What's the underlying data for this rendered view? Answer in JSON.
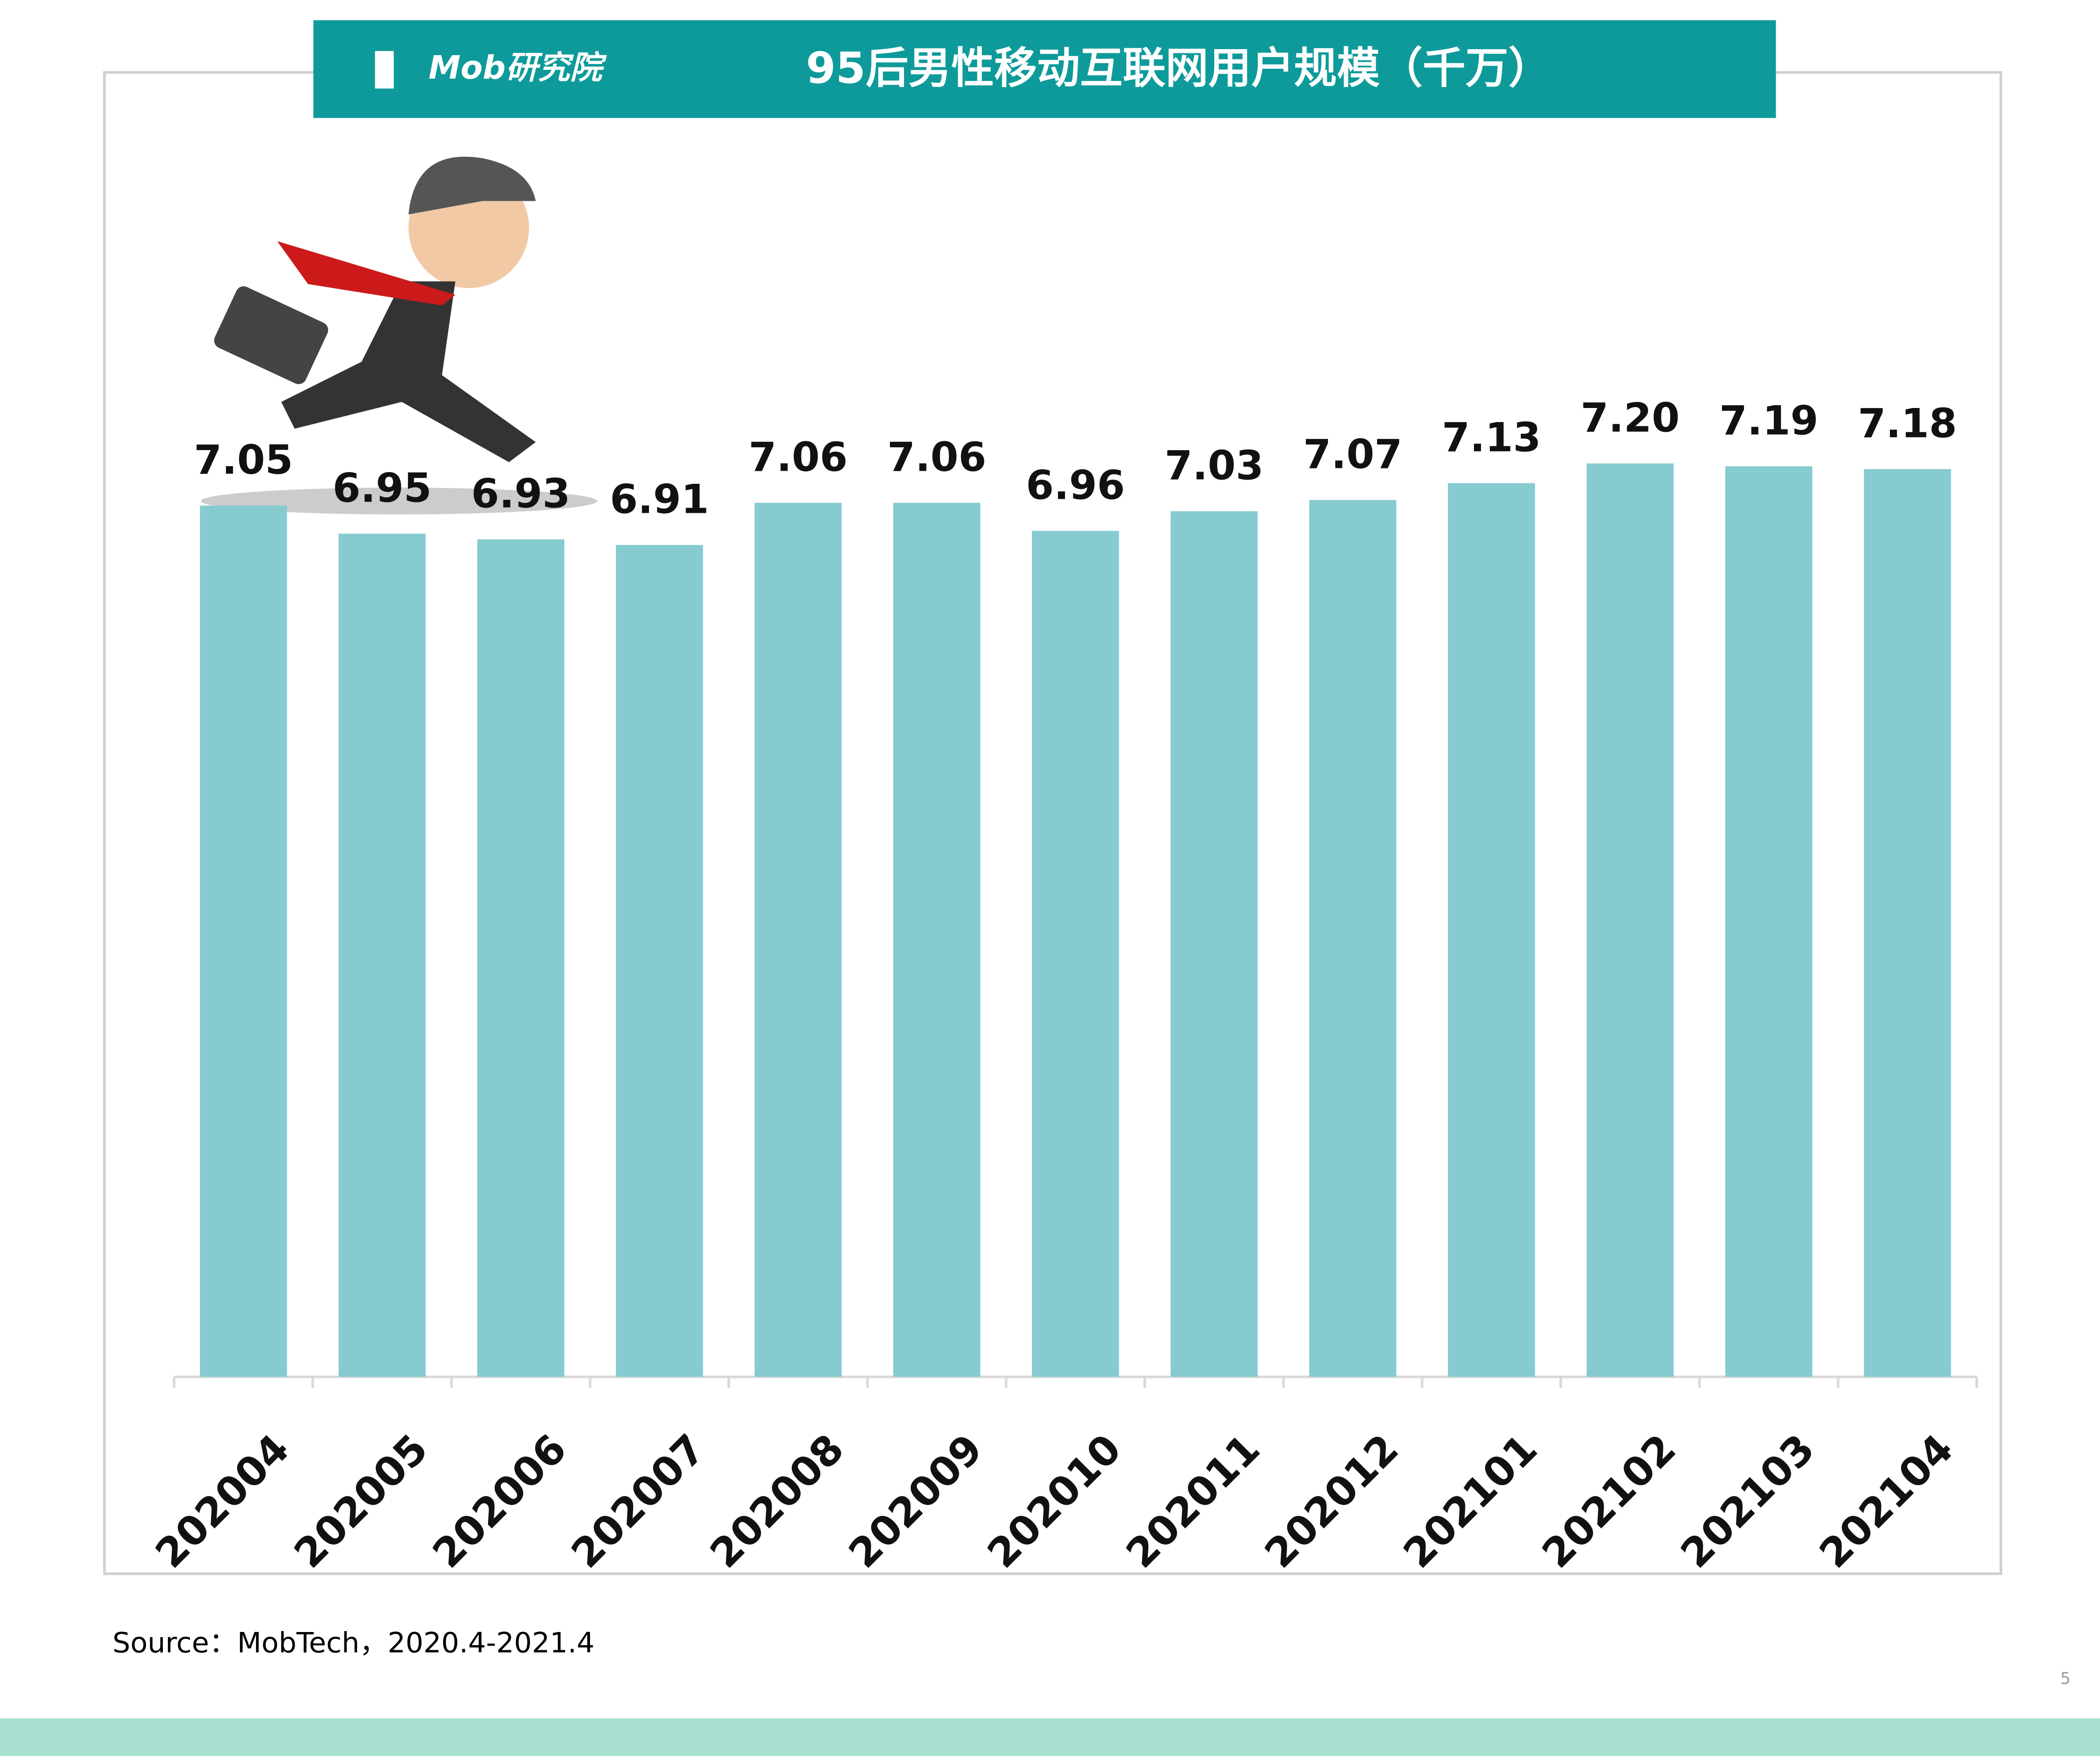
{
  "logo": "Mob研究院",
  "chart_data": {
    "type": "bar",
    "title": "95后男性移动互联网用户规模（千万）",
    "categories": [
      "202004",
      "202005",
      "202006",
      "202007",
      "202008",
      "202009",
      "202010",
      "202011",
      "202012",
      "202101",
      "202102",
      "202103",
      "202104"
    ],
    "values": [
      7.05,
      6.95,
      6.93,
      6.91,
      7.06,
      7.06,
      6.96,
      7.03,
      7.07,
      7.13,
      7.2,
      7.19,
      7.18
    ],
    "value_labels": [
      "7.05",
      "6.95",
      "6.93",
      "6.91",
      "7.06",
      "7.06",
      "6.96",
      "7.03",
      "7.07",
      "7.13",
      "7.20",
      "7.19",
      "7.18"
    ],
    "color": "#86cbcf",
    "ylim": [
      3.95,
      7.5
    ]
  },
  "source": "Source：MobTech，2020.4-2021.4",
  "page_number": "5"
}
